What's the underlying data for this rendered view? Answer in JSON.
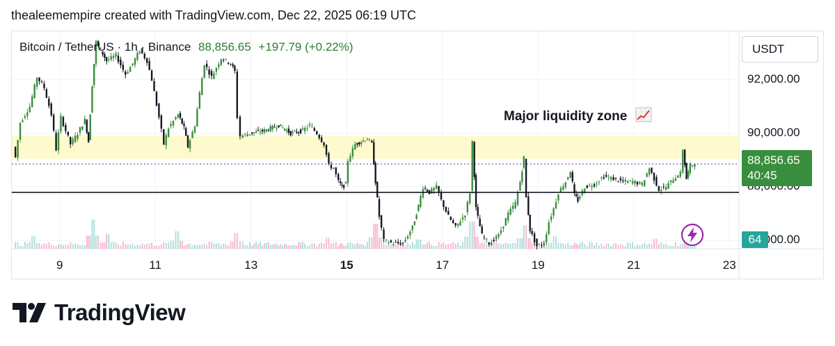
{
  "caption": "thealeemempire created with TradingView.com, Dec 22, 2025 06:19 UTC",
  "legend": {
    "symbol": "Bitcoin / TetherUS · 1h · Binance",
    "last": "88,856.65",
    "change": "+197.79 (+0.22%)"
  },
  "currency": "USDT",
  "price_tag": {
    "price": "88,856.65",
    "countdown": "40:45"
  },
  "volume_tag": "64",
  "annotation": {
    "text": "Major liquidity zone",
    "icon": "chart-increasing-icon"
  },
  "footer": {
    "brand": "TradingView",
    "logo_icon": "tradingview-logo-icon"
  },
  "colors": {
    "up": "#388e3c",
    "down": "#131722",
    "zone": "#fff9c4",
    "vol_up": "#b2dfdb",
    "vol_down": "#f8bbd0",
    "price_tag": "#388e3c",
    "volume_tag": "#26a69a",
    "bolt": "#9c27b0"
  },
  "chart_data": {
    "type": "candlestick",
    "title": "",
    "xlabel": "",
    "ylabel": "",
    "x_ticks": [
      {
        "day": 9,
        "label": "9",
        "bold": false
      },
      {
        "day": 11,
        "label": "11",
        "bold": false
      },
      {
        "day": 13,
        "label": "13",
        "bold": false
      },
      {
        "day": 15,
        "label": "15",
        "bold": true
      },
      {
        "day": 17,
        "label": "17",
        "bold": false
      },
      {
        "day": 19,
        "label": "19",
        "bold": false
      },
      {
        "day": 21,
        "label": "21",
        "bold": false
      },
      {
        "day": 23,
        "label": "23",
        "bold": false
      }
    ],
    "y_ticks": [
      {
        "value": 92000,
        "label": "92,000.00"
      },
      {
        "value": 90000,
        "label": "90,000.00"
      },
      {
        "value": 88000,
        "label": "88,000.00"
      },
      {
        "value": 86000,
        "label": "86,000.00"
      }
    ],
    "y_range": [
      85700,
      93800
    ],
    "x_range": [
      8.0,
      23.2
    ],
    "liquidity_zone": {
      "low": 89050,
      "high": 89900
    },
    "support_line": 87800,
    "last_price": 88856.65,
    "path": [
      [
        8.05,
        89500
      ],
      [
        8.1,
        89100
      ],
      [
        8.2,
        90400
      ],
      [
        8.4,
        91000
      ],
      [
        8.55,
        92100
      ],
      [
        8.7,
        91700
      ],
      [
        8.85,
        90700
      ],
      [
        8.95,
        89400
      ],
      [
        9.05,
        90600
      ],
      [
        9.25,
        89600
      ],
      [
        9.4,
        90000
      ],
      [
        9.55,
        90500
      ],
      [
        9.62,
        89700
      ],
      [
        9.7,
        91800
      ],
      [
        9.78,
        93400
      ],
      [
        9.88,
        93100
      ],
      [
        10.0,
        92700
      ],
      [
        10.2,
        92900
      ],
      [
        10.4,
        92200
      ],
      [
        10.55,
        92600
      ],
      [
        10.7,
        93100
      ],
      [
        10.85,
        92700
      ],
      [
        10.95,
        92000
      ],
      [
        11.1,
        90600
      ],
      [
        11.2,
        89600
      ],
      [
        11.3,
        90200
      ],
      [
        11.5,
        90700
      ],
      [
        11.62,
        90200
      ],
      [
        11.7,
        89500
      ],
      [
        11.85,
        90300
      ],
      [
        11.95,
        91500
      ],
      [
        12.05,
        92600
      ],
      [
        12.2,
        92100
      ],
      [
        12.4,
        92800
      ],
      [
        12.6,
        92600
      ],
      [
        12.68,
        92300
      ],
      [
        12.74,
        90600
      ],
      [
        12.8,
        89900
      ],
      [
        13.0,
        90000
      ],
      [
        13.3,
        90100
      ],
      [
        13.6,
        90300
      ],
      [
        13.85,
        90000
      ],
      [
        14.1,
        90100
      ],
      [
        14.25,
        90300
      ],
      [
        14.4,
        90000
      ],
      [
        14.55,
        89600
      ],
      [
        14.65,
        88800
      ],
      [
        14.75,
        88700
      ],
      [
        14.85,
        88200
      ],
      [
        14.92,
        88000
      ],
      [
        15.0,
        88100
      ],
      [
        15.05,
        89000
      ],
      [
        15.2,
        89600
      ],
      [
        15.45,
        89800
      ],
      [
        15.55,
        89600
      ],
      [
        15.62,
        88200
      ],
      [
        15.7,
        86900
      ],
      [
        15.8,
        86000
      ],
      [
        16.0,
        85900
      ],
      [
        16.2,
        85900
      ],
      [
        16.4,
        86500
      ],
      [
        16.52,
        87300
      ],
      [
        16.62,
        88000
      ],
      [
        16.75,
        87800
      ],
      [
        16.9,
        88000
      ],
      [
        17.0,
        87500
      ],
      [
        17.15,
        86900
      ],
      [
        17.3,
        86500
      ],
      [
        17.5,
        87000
      ],
      [
        17.6,
        87800
      ],
      [
        17.65,
        89700
      ],
      [
        17.72,
        87200
      ],
      [
        17.85,
        86200
      ],
      [
        18.0,
        85900
      ],
      [
        18.2,
        86200
      ],
      [
        18.4,
        87000
      ],
      [
        18.55,
        87400
      ],
      [
        18.65,
        88200
      ],
      [
        18.72,
        89100
      ],
      [
        18.78,
        87600
      ],
      [
        18.85,
        86400
      ],
      [
        19.0,
        85800
      ],
      [
        19.15,
        85900
      ],
      [
        19.25,
        86700
      ],
      [
        19.35,
        87200
      ],
      [
        19.45,
        87800
      ],
      [
        19.6,
        88200
      ],
      [
        19.7,
        88600
      ],
      [
        19.78,
        87700
      ],
      [
        19.85,
        87500
      ],
      [
        20.0,
        88000
      ],
      [
        20.2,
        88100
      ],
      [
        20.4,
        88400
      ],
      [
        20.6,
        88300
      ],
      [
        20.8,
        88200
      ],
      [
        21.0,
        88200
      ],
      [
        21.2,
        88100
      ],
      [
        21.35,
        88700
      ],
      [
        21.45,
        88300
      ],
      [
        21.55,
        87900
      ],
      [
        21.7,
        88000
      ],
      [
        21.85,
        88300
      ],
      [
        22.0,
        88500
      ],
      [
        22.05,
        89400
      ],
      [
        22.12,
        88300
      ],
      [
        22.2,
        88800
      ],
      [
        22.3,
        88856.65
      ]
    ],
    "volume": {
      "range_max": 1000,
      "spikes": [
        {
          "day": 9.7,
          "value": 700
        },
        {
          "day": 11.45,
          "value": 420
        },
        {
          "day": 10.0,
          "value": 350
        },
        {
          "day": 15.6,
          "value": 600
        },
        {
          "day": 17.62,
          "value": 650
        },
        {
          "day": 18.72,
          "value": 560
        },
        {
          "day": 12.7,
          "value": 380
        },
        {
          "day": 14.6,
          "value": 260
        },
        {
          "day": 19.35,
          "value": 300
        },
        {
          "day": 21.45,
          "value": 240
        },
        {
          "day": 8.45,
          "value": 300
        },
        {
          "day": 16.5,
          "value": 220
        }
      ]
    }
  }
}
